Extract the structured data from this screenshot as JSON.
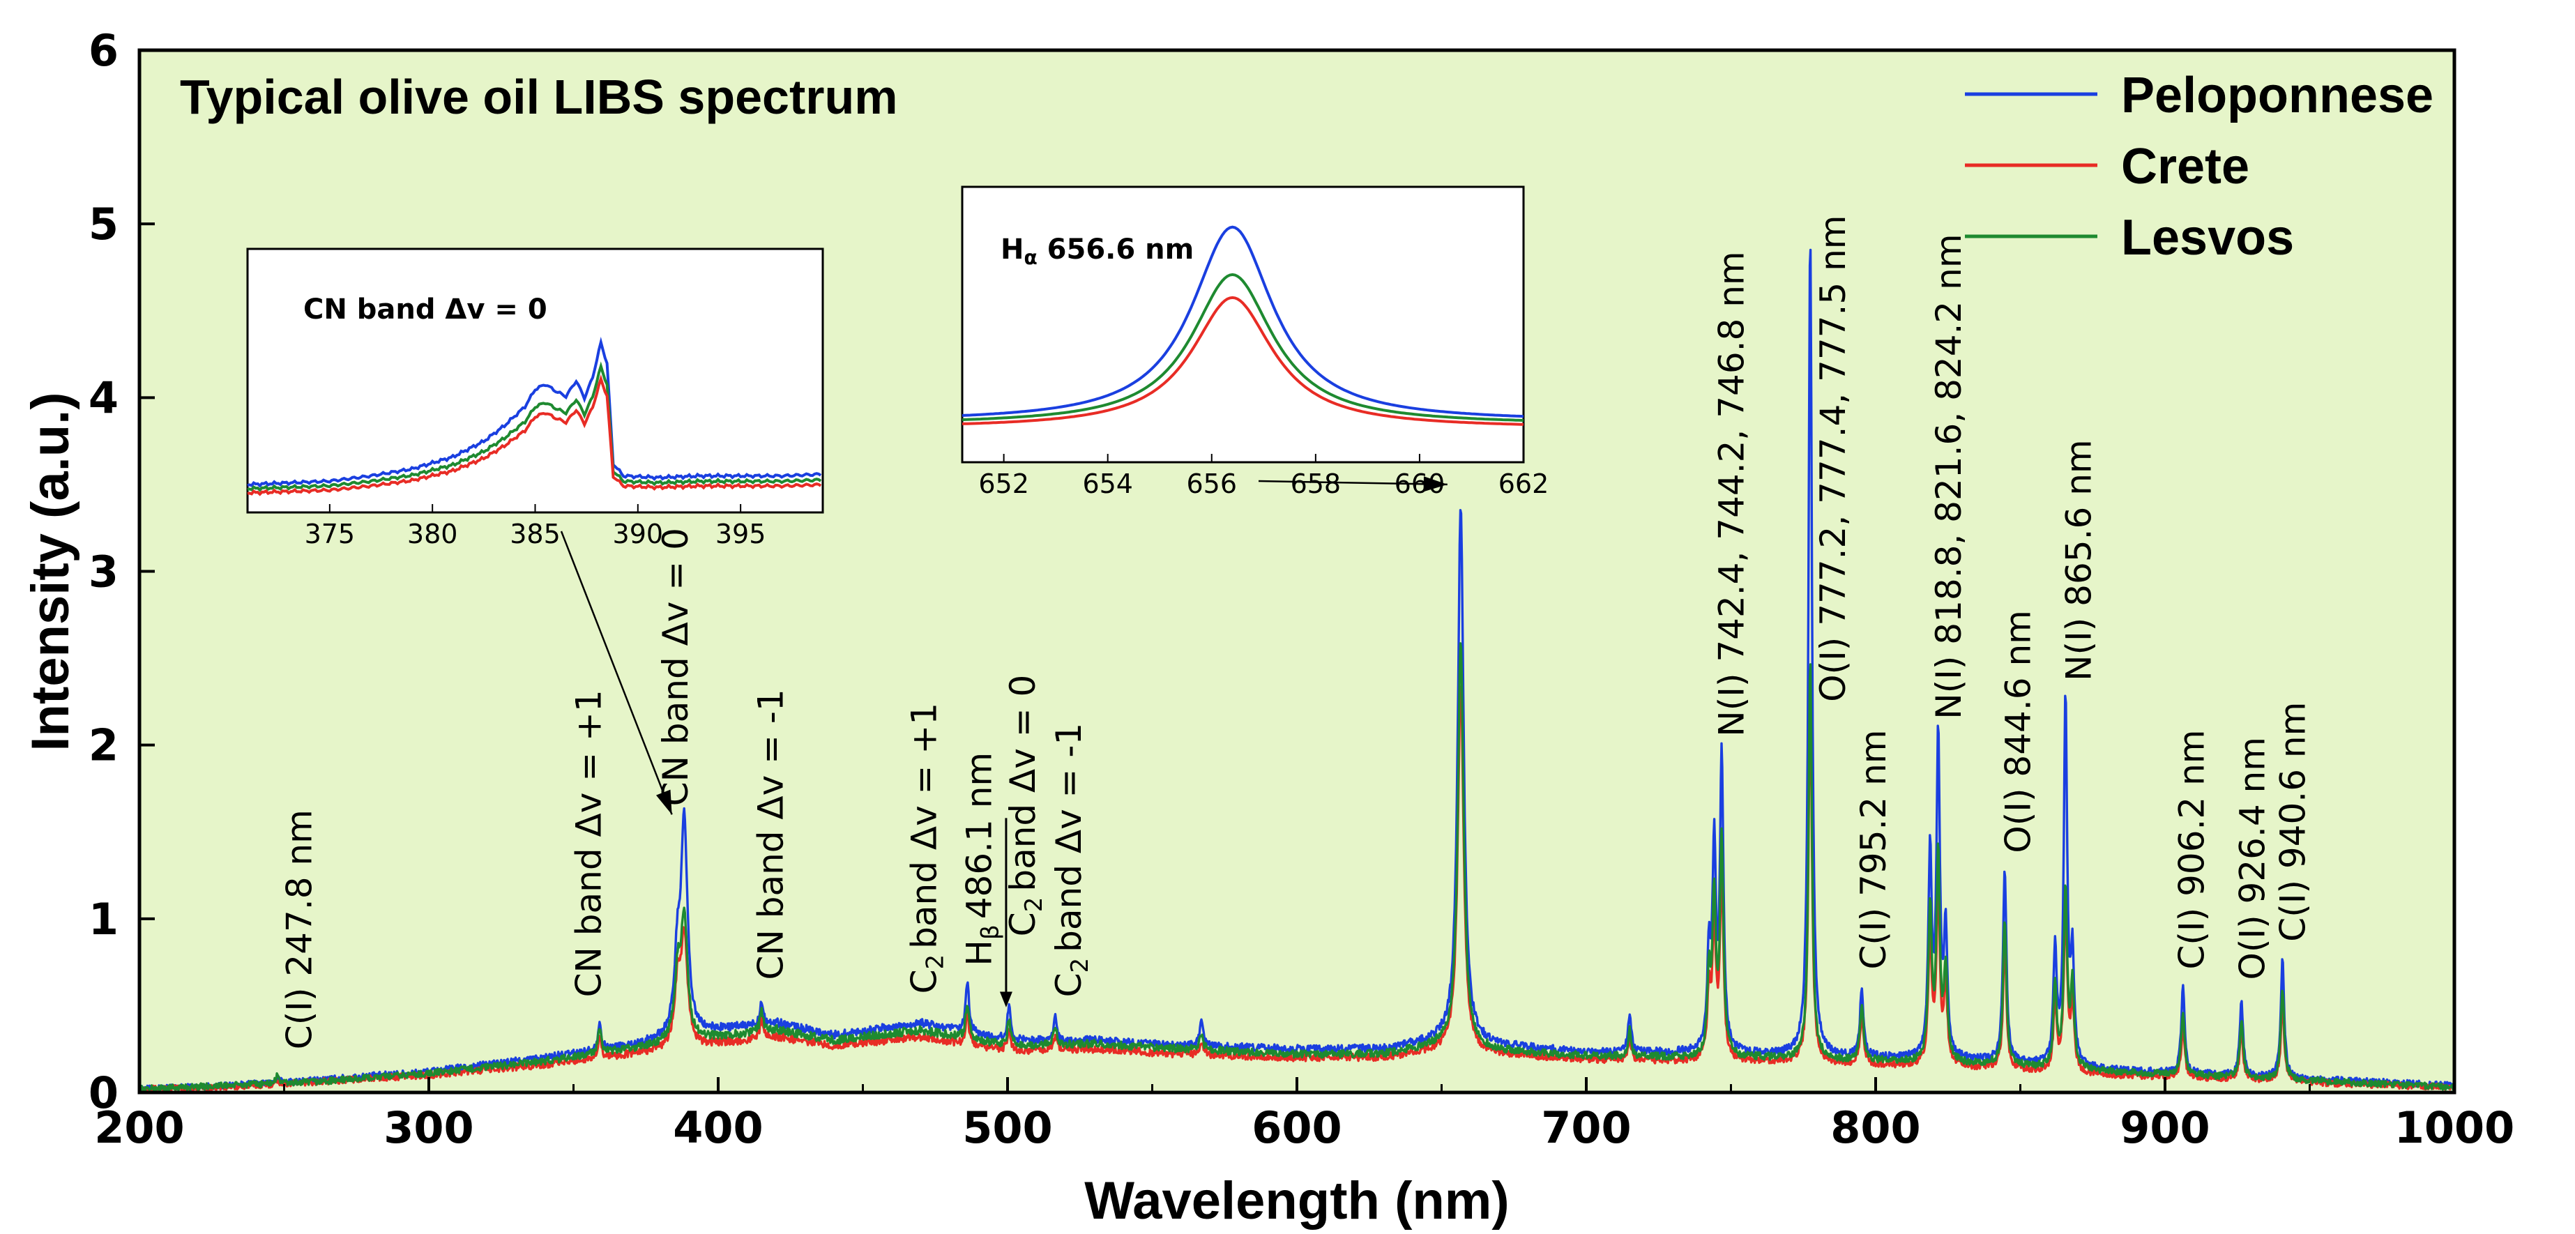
{
  "chart_data": {
    "type": "line",
    "title": "Typical olive oil LIBS spectrum",
    "xlabel": "Wavelength (nm)",
    "ylabel": "Intensity (a.u.)",
    "xlim": [
      200,
      1000
    ],
    "ylim": [
      0,
      6
    ],
    "x_ticks": [
      "200",
      "300",
      "400",
      "500",
      "600",
      "700",
      "800",
      "900",
      "1000"
    ],
    "y_ticks": [
      "0",
      "1",
      "2",
      "3",
      "4",
      "5",
      "6"
    ],
    "background_color": "#e6f5c9",
    "legend_position": "top-right",
    "series": [
      {
        "name": "Peloponnese",
        "color": "#1a3fe0",
        "baseline": [
          [
            200,
            0.02
          ],
          [
            230,
            0.04
          ],
          [
            260,
            0.07
          ],
          [
            300,
            0.12
          ],
          [
            340,
            0.2
          ],
          [
            370,
            0.27
          ],
          [
            400,
            0.36
          ],
          [
            420,
            0.4
          ],
          [
            440,
            0.33
          ],
          [
            470,
            0.4
          ],
          [
            500,
            0.3
          ],
          [
            530,
            0.3
          ],
          [
            560,
            0.27
          ],
          [
            600,
            0.25
          ],
          [
            630,
            0.25
          ],
          [
            650,
            0.3
          ],
          [
            670,
            0.27
          ],
          [
            700,
            0.23
          ],
          [
            740,
            0.23
          ],
          [
            760,
            0.22
          ],
          [
            800,
            0.2
          ],
          [
            840,
            0.18
          ],
          [
            880,
            0.13
          ],
          [
            920,
            0.1
          ],
          [
            960,
            0.07
          ],
          [
            1000,
            0.04
          ]
        ],
        "peaks": [
          [
            247.8,
            0.08
          ],
          [
            359,
            0.4
          ],
          [
            386,
            0.75
          ],
          [
            388.3,
            1.52
          ],
          [
            415,
            0.53
          ],
          [
            486.1,
            0.63
          ],
          [
            500.5,
            0.5
          ],
          [
            516.5,
            0.43
          ],
          [
            567,
            0.4
          ],
          [
            656.6,
            3.38
          ],
          [
            715,
            0.44
          ],
          [
            742.4,
            0.8
          ],
          [
            744.2,
            1.37
          ],
          [
            746.8,
            1.93
          ],
          [
            777.4,
            4.95
          ],
          [
            795.2,
            0.6
          ],
          [
            818.8,
            1.37
          ],
          [
            821.6,
            2.02
          ],
          [
            824.2,
            0.9
          ],
          [
            844.6,
            1.27
          ],
          [
            862,
            0.8
          ],
          [
            865.6,
            2.25
          ],
          [
            868,
            0.75
          ],
          [
            906.2,
            0.6
          ],
          [
            926.4,
            0.53
          ],
          [
            940.6,
            0.76
          ]
        ]
      },
      {
        "name": "Crete",
        "color": "#e82c25",
        "baseline": [
          [
            200,
            0.02
          ],
          [
            230,
            0.03
          ],
          [
            260,
            0.06
          ],
          [
            300,
            0.1
          ],
          [
            340,
            0.16
          ],
          [
            370,
            0.22
          ],
          [
            400,
            0.28
          ],
          [
            420,
            0.32
          ],
          [
            440,
            0.27
          ],
          [
            470,
            0.32
          ],
          [
            500,
            0.24
          ],
          [
            530,
            0.25
          ],
          [
            560,
            0.22
          ],
          [
            600,
            0.2
          ],
          [
            630,
            0.2
          ],
          [
            650,
            0.24
          ],
          [
            670,
            0.22
          ],
          [
            700,
            0.19
          ],
          [
            740,
            0.18
          ],
          [
            760,
            0.18
          ],
          [
            800,
            0.16
          ],
          [
            840,
            0.14
          ],
          [
            880,
            0.1
          ],
          [
            920,
            0.08
          ],
          [
            960,
            0.05
          ],
          [
            1000,
            0.03
          ]
        ],
        "peaks": [
          [
            247.8,
            0.07
          ],
          [
            359,
            0.32
          ],
          [
            386,
            0.6
          ],
          [
            388.3,
            0.88
          ],
          [
            415,
            0.42
          ],
          [
            486.1,
            0.45
          ],
          [
            500.5,
            0.36
          ],
          [
            516.5,
            0.32
          ],
          [
            567,
            0.3
          ],
          [
            656.6,
            2.35
          ],
          [
            715,
            0.3
          ],
          [
            742.4,
            0.55
          ],
          [
            744.2,
            0.95
          ],
          [
            746.8,
            1.25
          ],
          [
            777.4,
            2.3
          ],
          [
            795.2,
            0.42
          ],
          [
            818.8,
            0.9
          ],
          [
            821.6,
            1.15
          ],
          [
            824.2,
            0.6
          ],
          [
            844.6,
            0.85
          ],
          [
            862,
            0.5
          ],
          [
            865.6,
            1.05
          ],
          [
            868,
            0.5
          ],
          [
            906.2,
            0.38
          ],
          [
            926.4,
            0.35
          ],
          [
            940.6,
            0.5
          ]
        ]
      },
      {
        "name": "Lesvos",
        "color": "#1e8a30",
        "baseline": [
          [
            200,
            0.02
          ],
          [
            230,
            0.04
          ],
          [
            260,
            0.06
          ],
          [
            300,
            0.11
          ],
          [
            340,
            0.18
          ],
          [
            370,
            0.25
          ],
          [
            400,
            0.32
          ],
          [
            420,
            0.36
          ],
          [
            440,
            0.3
          ],
          [
            470,
            0.36
          ],
          [
            500,
            0.27
          ],
          [
            530,
            0.28
          ],
          [
            560,
            0.25
          ],
          [
            600,
            0.22
          ],
          [
            630,
            0.22
          ],
          [
            650,
            0.27
          ],
          [
            670,
            0.24
          ],
          [
            700,
            0.21
          ],
          [
            740,
            0.2
          ],
          [
            760,
            0.2
          ],
          [
            800,
            0.18
          ],
          [
            840,
            0.16
          ],
          [
            880,
            0.12
          ],
          [
            920,
            0.09
          ],
          [
            960,
            0.06
          ],
          [
            1000,
            0.03
          ]
        ],
        "peaks": [
          [
            247.8,
            0.1
          ],
          [
            359,
            0.36
          ],
          [
            386,
            0.66
          ],
          [
            388.3,
            0.98
          ],
          [
            415,
            0.47
          ],
          [
            486.1,
            0.52
          ],
          [
            500.5,
            0.42
          ],
          [
            516.5,
            0.37
          ],
          [
            567,
            0.34
          ],
          [
            656.6,
            2.6
          ],
          [
            715,
            0.36
          ],
          [
            742.4,
            0.65
          ],
          [
            744.2,
            1.1
          ],
          [
            746.8,
            1.45
          ],
          [
            777.4,
            2.5
          ],
          [
            795.2,
            0.5
          ],
          [
            818.8,
            1.05
          ],
          [
            821.6,
            1.35
          ],
          [
            824.2,
            0.7
          ],
          [
            844.6,
            1.0
          ],
          [
            862,
            0.6
          ],
          [
            865.6,
            1.15
          ],
          [
            868,
            0.6
          ],
          [
            906.2,
            0.45
          ],
          [
            926.4,
            0.42
          ],
          [
            940.6,
            0.6
          ]
        ]
      }
    ],
    "annotations": [
      {
        "id": "c2478",
        "text": "C(I) 247.8 nm",
        "x": 255,
        "y": 0.2
      },
      {
        "id": "cn-p1",
        "text": "CN band Δv = +1",
        "x": 355,
        "y": 0.5
      },
      {
        "id": "cn-0",
        "text": "CN band Δv = 0",
        "x": 385,
        "y": 1.6
      },
      {
        "id": "cn-m1",
        "text": "CN band Δv = -1",
        "x": 418,
        "y": 0.6
      },
      {
        "id": "c2-p1",
        "text": "band Δv = +1",
        "prefix": "C",
        "sub": "2",
        "x": 471,
        "y": 0.52
      },
      {
        "id": "hb",
        "text": "486.1 nm",
        "prefix": "H",
        "sub": "β",
        "x": 490,
        "y": 0.68
      },
      {
        "id": "c2-0",
        "text": "band Δv = 0",
        "prefix": "C",
        "sub": "2",
        "x": 505,
        "y": 0.85
      },
      {
        "id": "c2-m1",
        "text": "band Δv = -1",
        "prefix": "C",
        "sub": "2",
        "x": 521,
        "y": 0.5
      },
      {
        "id": "n742",
        "text": "N(I) 742.4, 744.2, 746.8 nm",
        "x": 750,
        "y": 2.0
      },
      {
        "id": "o777",
        "text": "O(I) 777.2, 777.4, 777.5 nm",
        "x": 785,
        "y": 2.2
      },
      {
        "id": "c795",
        "text": "C(I) 795.2 nm",
        "x": 799,
        "y": 0.66
      },
      {
        "id": "n818",
        "text": "N(I) 818.8, 821.6, 824.2 nm",
        "x": 825,
        "y": 2.1
      },
      {
        "id": "o844",
        "text": "O(I) 844.6 nm",
        "x": 849,
        "y": 1.33
      },
      {
        "id": "n865",
        "text": "N(I) 865.6 nm",
        "x": 870,
        "y": 2.32
      },
      {
        "id": "c906",
        "text": "C(I) 906.2 nm",
        "x": 909,
        "y": 0.66
      },
      {
        "id": "o926",
        "text": "O(I) 926.4 nm",
        "x": 930,
        "y": 0.6
      },
      {
        "id": "c940",
        "text": "C(I) 940.6 nm",
        "x": 944,
        "y": 0.82
      }
    ],
    "insets": [
      {
        "id": "cn",
        "title": "CN band Δv = 0",
        "xlim": [
          371,
          399
        ],
        "x_ticks": [
          "375",
          "380",
          "385",
          "390",
          "395"
        ],
        "points": [
          [
            371,
            0.0
          ],
          [
            373,
            0.01
          ],
          [
            375,
            0.02
          ],
          [
            377,
            0.05
          ],
          [
            379,
            0.09
          ],
          [
            381,
            0.16
          ],
          [
            382.5,
            0.25
          ],
          [
            383.5,
            0.34
          ],
          [
            384.5,
            0.45
          ],
          [
            385,
            0.55
          ],
          [
            385.5,
            0.58
          ],
          [
            386,
            0.54
          ],
          [
            386.5,
            0.51
          ],
          [
            387,
            0.6
          ],
          [
            387.4,
            0.5
          ],
          [
            387.8,
            0.62
          ],
          [
            388.2,
            0.82
          ],
          [
            388.5,
            0.7
          ],
          [
            388.8,
            0.12
          ],
          [
            389.3,
            0.05
          ],
          [
            391,
            0.04
          ],
          [
            393,
            0.05
          ],
          [
            395,
            0.05
          ],
          [
            397,
            0.05
          ],
          [
            399,
            0.06
          ]
        ],
        "levels": {
          "Peloponnese": 1.0,
          "Lesvos": 0.86,
          "Crete": 0.8
        },
        "arrow_to_x": 386
      },
      {
        "id": "ha",
        "title_prefix": "H",
        "title_sub": "α",
        "title_rest": " 656.6 nm",
        "xlim": [
          651.2,
          662
        ],
        "x_ticks": [
          "652",
          "654",
          "656",
          "658",
          "660",
          "662"
        ],
        "center": 656.4,
        "width": 0.95,
        "levels": {
          "Peloponnese": 1.0,
          "Lesvos": 0.77,
          "Crete": 0.67
        },
        "arrow_to_x": 654
      }
    ]
  }
}
